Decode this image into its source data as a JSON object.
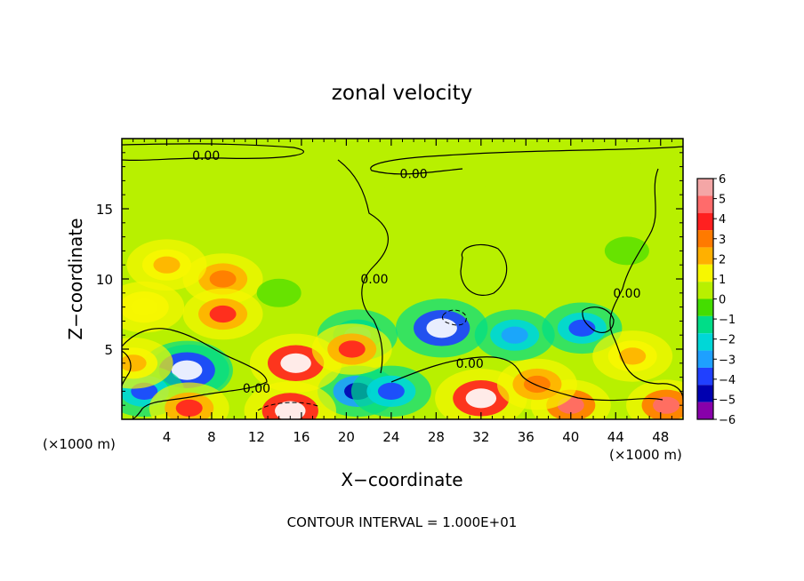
{
  "chart_data": {
    "type": "heatmap",
    "title": "zonal velocity",
    "xlabel": "X−coordinate",
    "ylabel": "Z−coordinate",
    "x_unit_left": "(×1000 m)",
    "x_unit_right": "(×1000 m)",
    "footer": "CONTOUR INTERVAL = 1.000E+01",
    "xlim": [
      0,
      50
    ],
    "ylim": [
      0,
      20
    ],
    "x_ticks": [
      4,
      8,
      12,
      16,
      20,
      24,
      28,
      32,
      36,
      40,
      44,
      48
    ],
    "y_ticks": [
      5,
      10,
      15
    ],
    "colorbar": {
      "min": -6,
      "max": 6,
      "labels": [
        "6",
        "5",
        "4",
        "3",
        "2",
        "1",
        "0",
        "−1",
        "−2",
        "−3",
        "−4",
        "−5",
        "−6"
      ],
      "colors": [
        "#f4a6a6",
        "#ff6b6b",
        "#ff2020",
        "#ff7a00",
        "#ffb000",
        "#f7f700",
        "#b8f000",
        "#44dd00",
        "#00dd88",
        "#00d7d7",
        "#1ea0ff",
        "#2040ff",
        "#0000b0",
        "#8800aa"
      ],
      "saturated_color": "#ffffff"
    },
    "contour_labels": [
      {
        "text": "0.00",
        "x": 7.5,
        "z": 18.8
      },
      {
        "text": "0.00",
        "x": 26,
        "z": 17.5
      },
      {
        "text": "0.00",
        "x": 22.5,
        "z": 10
      },
      {
        "text": "0.00",
        "x": 45,
        "z": 9
      },
      {
        "text": "0.00",
        "x": 12,
        "z": 2.2
      },
      {
        "text": "0.00",
        "x": 31,
        "z": 4
      }
    ],
    "features": [
      {
        "x": 9,
        "z": 10,
        "value": 3
      },
      {
        "x": 9,
        "z": 7.5,
        "value": 3.5
      },
      {
        "x": 4,
        "z": 11,
        "value": 2
      },
      {
        "x": 2,
        "z": 8,
        "value": 1.5
      },
      {
        "x": 29,
        "z": 16,
        "value": 0.5
      },
      {
        "x": 28.5,
        "z": 6.5,
        "value": -6.5
      },
      {
        "x": 35,
        "z": 6,
        "value": -3
      },
      {
        "x": 41,
        "z": 6.5,
        "value": -4
      },
      {
        "x": 21,
        "z": 6,
        "value": -2
      },
      {
        "x": 6,
        "z": 3.5,
        "value": -4.5
      },
      {
        "x": 5.8,
        "z": 3.5,
        "value": -6.5
      },
      {
        "x": 2,
        "z": 2,
        "value": -3.5
      },
      {
        "x": 21,
        "z": 2,
        "value": -5
      },
      {
        "x": 24,
        "z": 2,
        "value": -4
      },
      {
        "x": 15.5,
        "z": 4,
        "value": 6.5
      },
      {
        "x": 15,
        "z": 0.6,
        "value": 6.5
      },
      {
        "x": 32,
        "z": 1.5,
        "value": 6.5
      },
      {
        "x": 40,
        "z": 1,
        "value": 5
      },
      {
        "x": 48.5,
        "z": 1,
        "value": 5
      },
      {
        "x": 6,
        "z": 0.8,
        "value": 4
      },
      {
        "x": 20.5,
        "z": 5,
        "value": 4
      },
      {
        "x": 45.5,
        "z": 4.5,
        "value": 2.5
      },
      {
        "x": 37,
        "z": 2.5,
        "value": 3
      },
      {
        "x": 1,
        "z": 4,
        "value": 2
      },
      {
        "x": 14,
        "z": 9,
        "value": 0
      },
      {
        "x": 45,
        "z": 12,
        "value": 0
      },
      {
        "x": 20,
        "z": 16,
        "value": 0.8
      },
      {
        "x": 48,
        "z": 17,
        "value": 0.5
      }
    ],
    "background_value": 0.7
  }
}
